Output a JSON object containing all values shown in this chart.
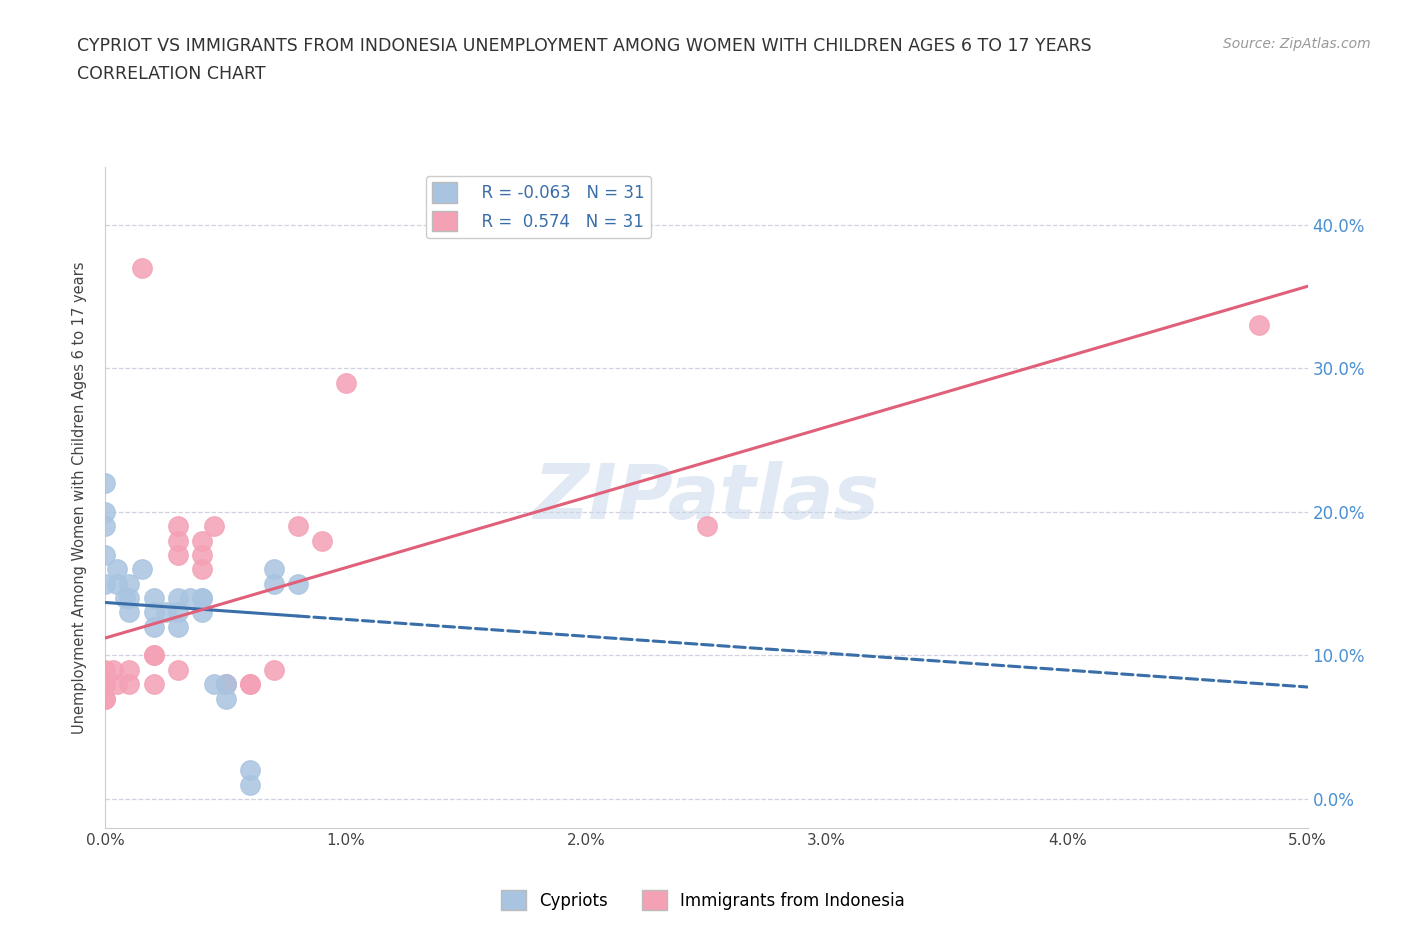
{
  "title_line1": "CYPRIOT VS IMMIGRANTS FROM INDONESIA UNEMPLOYMENT AMONG WOMEN WITH CHILDREN AGES 6 TO 17 YEARS",
  "title_line2": "CORRELATION CHART",
  "source": "Source: ZipAtlas.com",
  "ylabel": "Unemployment Among Women with Children Ages 6 to 17 years",
  "xlim": [
    0.0,
    0.05
  ],
  "ylim": [
    -0.02,
    0.44
  ],
  "xticks": [
    0.0,
    0.01,
    0.02,
    0.03,
    0.04,
    0.05
  ],
  "xtick_labels": [
    "0.0%",
    "1.0%",
    "2.0%",
    "3.0%",
    "4.0%",
    "5.0%"
  ],
  "ytick_vals": [
    0.0,
    0.1,
    0.2,
    0.3,
    0.4
  ],
  "ytick_labels": [
    "0.0%",
    "10.0%",
    "20.0%",
    "30.0%",
    "40.0%"
  ],
  "blue_color": "#a8c4e0",
  "pink_color": "#f4a0b5",
  "blue_line_color": "#3a6ea8",
  "pink_line_color": "#e0607a",
  "legend_blue_r": "R = -0.063",
  "legend_blue_n": "N = 31",
  "legend_pink_r": "R =  0.574",
  "legend_pink_n": "N = 31",
  "watermark": "ZIPatlas",
  "watermark_color": "#c8d8ec",
  "blue_R": -0.063,
  "pink_R": 0.574,
  "blue_scatter_x": [
    0.0,
    0.0,
    0.0,
    0.0,
    0.0,
    0.0005,
    0.0005,
    0.0008,
    0.001,
    0.001,
    0.001,
    0.0015,
    0.002,
    0.002,
    0.002,
    0.0025,
    0.003,
    0.003,
    0.003,
    0.0035,
    0.004,
    0.004,
    0.004,
    0.0045,
    0.005,
    0.005,
    0.006,
    0.006,
    0.007,
    0.007,
    0.008
  ],
  "blue_scatter_y": [
    0.22,
    0.2,
    0.19,
    0.17,
    0.15,
    0.16,
    0.15,
    0.14,
    0.15,
    0.14,
    0.13,
    0.16,
    0.14,
    0.13,
    0.12,
    0.13,
    0.14,
    0.13,
    0.12,
    0.14,
    0.14,
    0.13,
    0.14,
    0.08,
    0.08,
    0.07,
    0.02,
    0.01,
    0.15,
    0.16,
    0.15
  ],
  "pink_scatter_x": [
    0.0,
    0.0,
    0.0,
    0.0,
    0.0,
    0.0003,
    0.0005,
    0.001,
    0.001,
    0.0015,
    0.002,
    0.002,
    0.002,
    0.003,
    0.003,
    0.003,
    0.003,
    0.004,
    0.004,
    0.004,
    0.0045,
    0.005,
    0.005,
    0.006,
    0.006,
    0.007,
    0.008,
    0.009,
    0.01,
    0.025,
    0.048
  ],
  "pink_scatter_y": [
    0.09,
    0.08,
    0.08,
    0.07,
    0.07,
    0.09,
    0.08,
    0.09,
    0.08,
    0.37,
    0.08,
    0.1,
    0.1,
    0.09,
    0.19,
    0.18,
    0.17,
    0.18,
    0.17,
    0.16,
    0.19,
    0.08,
    0.08,
    0.08,
    0.08,
    0.09,
    0.19,
    0.18,
    0.29,
    0.19,
    0.33
  ],
  "background_color": "#ffffff",
  "grid_color": "#ccccdd",
  "right_axis_color": "#4a90d0"
}
